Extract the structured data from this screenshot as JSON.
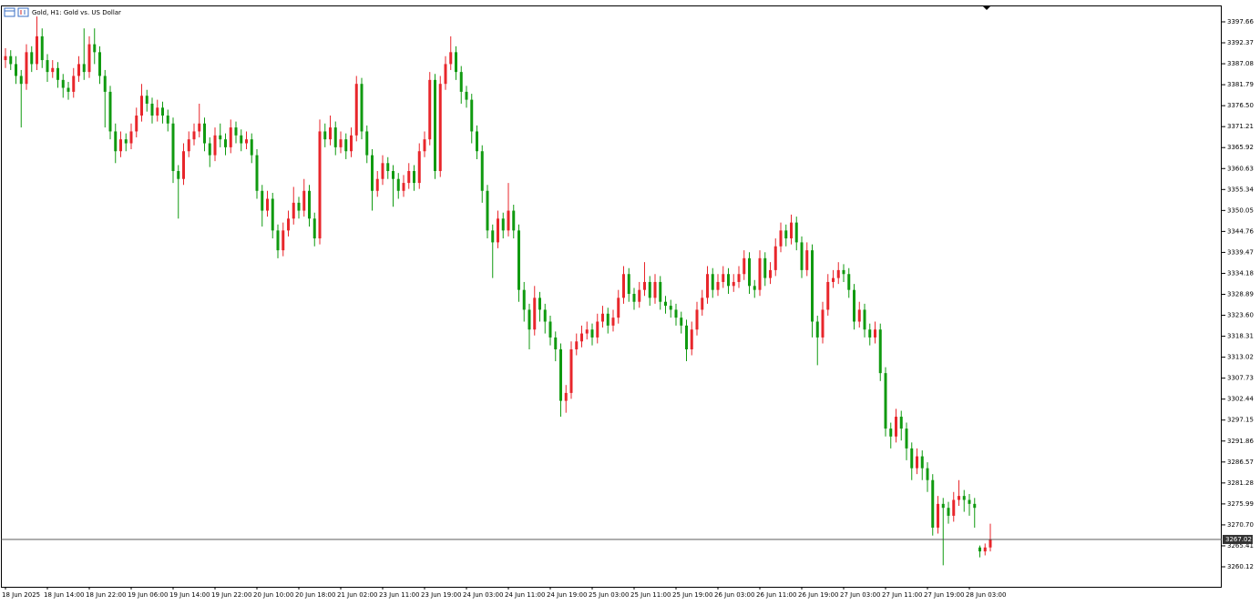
{
  "chart_data": {
    "type": "candlestick",
    "title": "Gold, H1:  Gold vs. US Dollar",
    "up_color": "#e8262b",
    "down_color": "#109a10",
    "ylim": [
      3255.07,
      3401.56
    ],
    "yticks": [
      3397.66,
      3392.37,
      3387.08,
      3381.79,
      {
        "value": 3376.5,
        "label": "3376.50"
      },
      3371.21,
      3365.92,
      3360.63,
      3355.34,
      3350.05,
      3344.76,
      3339.47,
      3334.18,
      3328.89,
      {
        "value": 3323.6,
        "label": "3323.60"
      },
      3318.31,
      3313.02,
      3307.73,
      3302.44,
      3297.15,
      3291.86,
      3286.57,
      3281.28,
      3275.99,
      {
        "value": 3270.7,
        "label": "3270.70"
      },
      3265.41,
      3260.12
    ],
    "current_price": 3267.02,
    "categories": [
      "18 Jun 2025",
      null,
      null,
      null,
      null,
      null,
      null,
      null,
      "18 Jun 14:00",
      null,
      null,
      null,
      null,
      null,
      null,
      null,
      "18 Jun 22:00",
      null,
      null,
      null,
      null,
      null,
      null,
      null,
      "19 Jun 06:00",
      null,
      null,
      null,
      null,
      null,
      null,
      null,
      "19 Jun 14:00",
      null,
      null,
      null,
      null,
      null,
      null,
      null,
      "19 Jun 22:00",
      null,
      null,
      null,
      null,
      null,
      null,
      null,
      "20 Jun 10:00",
      null,
      null,
      null,
      null,
      null,
      null,
      null,
      "20 Jun 18:00",
      null,
      null,
      null,
      null,
      null,
      null,
      null,
      "21 Jun 02:00",
      null,
      null,
      null,
      null,
      null,
      null,
      null,
      "23 Jun 11:00",
      null,
      null,
      null,
      null,
      null,
      null,
      null,
      "23 Jun 19:00",
      null,
      null,
      null,
      null,
      null,
      null,
      null,
      "24 Jun 03:00",
      null,
      null,
      null,
      null,
      null,
      null,
      null,
      "24 Jun 11:00",
      null,
      null,
      null,
      null,
      null,
      null,
      null,
      "24 Jun 19:00",
      null,
      null,
      null,
      null,
      null,
      null,
      null,
      "25 Jun 03:00",
      null,
      null,
      null,
      null,
      null,
      null,
      null,
      "25 Jun 11:00",
      null,
      null,
      null,
      null,
      null,
      null,
      null,
      "25 Jun 19:00",
      null,
      null,
      null,
      null,
      null,
      null,
      null,
      "26 Jun 03:00",
      null,
      null,
      null,
      null,
      null,
      null,
      null,
      "26 Jun 11:00",
      null,
      null,
      null,
      null,
      null,
      null,
      null,
      "26 Jun 19:00",
      null,
      null,
      null,
      null,
      null,
      null,
      null,
      "27 Jun 03:00",
      null,
      null,
      null,
      null,
      null,
      null,
      null,
      "27 Jun 11:00",
      null,
      null,
      null,
      null,
      null,
      null,
      null,
      "27 Jun 19:00",
      null,
      null,
      null,
      null,
      null,
      null,
      null,
      "28 Jun 03:00",
      null,
      null,
      null,
      null
    ],
    "ohlc": [
      [
        3388,
        3391,
        3386,
        3389
      ],
      [
        3389,
        3390.5,
        3385.5,
        3387
      ],
      [
        3387,
        3389,
        3382,
        3384
      ],
      [
        3384,
        3385.5,
        3371,
        3382
      ],
      [
        3382,
        3392,
        3380.5,
        3390
      ],
      [
        3390,
        3391.5,
        3385,
        3387
      ],
      [
        3387,
        3399,
        3385.5,
        3394
      ],
      [
        3394,
        3396,
        3386,
        3388
      ],
      [
        3388,
        3389.5,
        3382.5,
        3385
      ],
      [
        3385,
        3388,
        3383.5,
        3386
      ],
      [
        3386,
        3387.5,
        3381,
        3383
      ],
      [
        3383,
        3384.5,
        3378.5,
        3381
      ],
      [
        3381,
        3382.5,
        3378,
        3380
      ],
      [
        3380,
        3386,
        3378.5,
        3384
      ],
      [
        3384,
        3389,
        3382.5,
        3387
      ],
      [
        3387,
        3396,
        3383,
        3385
      ],
      [
        3385,
        3394,
        3383.5,
        3392
      ],
      [
        3392,
        3396,
        3387,
        3390
      ],
      [
        3390,
        3391.5,
        3382,
        3384
      ],
      [
        3384,
        3385.5,
        3371,
        3380
      ],
      [
        3380,
        3381.5,
        3368,
        3370
      ],
      [
        3370,
        3372,
        3362,
        3365
      ],
      [
        3365,
        3370,
        3363.5,
        3368
      ],
      [
        3368,
        3369.5,
        3365,
        3367
      ],
      [
        3367,
        3372,
        3365.5,
        3370
      ],
      [
        3370,
        3376,
        3368.5,
        3374
      ],
      [
        3374,
        3382,
        3372.5,
        3379
      ],
      [
        3379,
        3380.5,
        3375,
        3377
      ],
      [
        3377,
        3378.5,
        3372,
        3374
      ],
      [
        3374,
        3378,
        3372.5,
        3376
      ],
      [
        3376,
        3377.5,
        3372,
        3374
      ],
      [
        3374,
        3375.5,
        3370,
        3372
      ],
      [
        3372,
        3373.5,
        3357,
        3360
      ],
      [
        3360,
        3361.5,
        3348,
        3358
      ],
      [
        3358,
        3367,
        3356.5,
        3365
      ],
      [
        3365,
        3370,
        3363.5,
        3368
      ],
      [
        3368,
        3372,
        3366.5,
        3370
      ],
      [
        3370,
        3377,
        3368.5,
        3372
      ],
      [
        3372,
        3373.5,
        3365,
        3367
      ],
      [
        3367,
        3368.5,
        3361,
        3364
      ],
      [
        3364,
        3371,
        3362.5,
        3369
      ],
      [
        3369,
        3372,
        3366,
        3368
      ],
      [
        3368,
        3369.5,
        3364,
        3366
      ],
      [
        3366,
        3373,
        3364.5,
        3371
      ],
      [
        3371,
        3372.5,
        3367,
        3369
      ],
      [
        3369,
        3370.5,
        3365,
        3367
      ],
      [
        3367,
        3370,
        3365.5,
        3368
      ],
      [
        3368,
        3369.5,
        3362,
        3364
      ],
      [
        3364,
        3365.5,
        3353,
        3355
      ],
      [
        3355,
        3356.5,
        3346,
        3350
      ],
      [
        3350,
        3355,
        3348.5,
        3353
      ],
      [
        3353,
        3354.5,
        3343,
        3345
      ],
      [
        3345,
        3346.5,
        3338,
        3340
      ],
      [
        3340,
        3347,
        3338.5,
        3345
      ],
      [
        3345,
        3350,
        3343.5,
        3348
      ],
      [
        3348,
        3356,
        3346.5,
        3352
      ],
      [
        3352,
        3353.5,
        3348,
        3350
      ],
      [
        3350,
        3358,
        3348.5,
        3355
      ],
      [
        3355,
        3356.5,
        3346,
        3348
      ],
      [
        3348,
        3349.5,
        3341,
        3343
      ],
      [
        3343,
        3373,
        3341.5,
        3370
      ],
      [
        3370,
        3372,
        3366,
        3368
      ],
      [
        3368,
        3374,
        3366.5,
        3371
      ],
      [
        3371,
        3372.5,
        3364,
        3366
      ],
      [
        3366,
        3370,
        3364.5,
        3368
      ],
      [
        3368,
        3369.5,
        3363,
        3365
      ],
      [
        3365,
        3371,
        3363.5,
        3369
      ],
      [
        3369,
        3384,
        3367.5,
        3382
      ],
      [
        3382,
        3383.5,
        3368,
        3370
      ],
      [
        3370,
        3371.5,
        3362,
        3364
      ],
      [
        3364,
        3365.5,
        3350,
        3355
      ],
      [
        3355,
        3360,
        3353.5,
        3358
      ],
      [
        3358,
        3364,
        3356.5,
        3362
      ],
      [
        3362,
        3363.5,
        3358,
        3360
      ],
      [
        3360,
        3361.5,
        3351,
        3358
      ],
      [
        3358,
        3359.5,
        3353,
        3355
      ],
      [
        3355,
        3359,
        3353.5,
        3357
      ],
      [
        3357,
        3362,
        3355.5,
        3360
      ],
      [
        3360,
        3361.5,
        3355,
        3357
      ],
      [
        3357,
        3367,
        3355.5,
        3365
      ],
      [
        3365,
        3370,
        3363.5,
        3368
      ],
      [
        3368,
        3385,
        3366.5,
        3383
      ],
      [
        3383,
        3384.5,
        3358,
        3360
      ],
      [
        3360,
        3384,
        3358.5,
        3382
      ],
      [
        3382,
        3389,
        3380.5,
        3387
      ],
      [
        3387,
        3394,
        3385.5,
        3390
      ],
      [
        3390,
        3391.5,
        3383,
        3385
      ],
      [
        3385,
        3386.5,
        3377,
        3380
      ],
      [
        3380,
        3381.5,
        3376,
        3378
      ],
      [
        3378,
        3379.5,
        3367,
        3370
      ],
      [
        3370,
        3371.5,
        3363,
        3365
      ],
      [
        3365,
        3366.5,
        3352,
        3355
      ],
      [
        3355,
        3356.5,
        3343,
        3345
      ],
      [
        3345,
        3346.5,
        3333,
        3342
      ],
      [
        3342,
        3350,
        3340.5,
        3348
      ],
      [
        3348,
        3349.5,
        3343,
        3345
      ],
      [
        3345,
        3357,
        3343.5,
        3350
      ],
      [
        3350,
        3351.5,
        3343,
        3345
      ],
      [
        3345,
        3346.5,
        3327,
        3330
      ],
      [
        3330,
        3332,
        3322,
        3325
      ],
      [
        3325,
        3326.5,
        3315,
        3320
      ],
      [
        3320,
        3331,
        3318.5,
        3328
      ],
      [
        3328,
        3329.5,
        3322,
        3325
      ],
      [
        3325,
        3326.5,
        3319,
        3322
      ],
      [
        3322,
        3323.5,
        3316,
        3318
      ],
      [
        3318,
        3319.5,
        3312,
        3315
      ],
      [
        3315,
        3316.5,
        3298,
        3302
      ],
      [
        3302,
        3306,
        3299,
        3304
      ],
      [
        3304,
        3317,
        3302.5,
        3315
      ],
      [
        3315,
        3319,
        3313.5,
        3317
      ],
      [
        3317,
        3321,
        3315.5,
        3319
      ],
      [
        3319,
        3322,
        3317.5,
        3320
      ],
      [
        3320,
        3321.5,
        3316,
        3318
      ],
      [
        3318,
        3324,
        3316.5,
        3322
      ],
      [
        3322,
        3326,
        3320.5,
        3324
      ],
      [
        3324,
        3325.5,
        3319,
        3321
      ],
      [
        3321,
        3325,
        3319.5,
        3323
      ],
      [
        3323,
        3330,
        3321.5,
        3328
      ],
      [
        3328,
        3336,
        3326.5,
        3334
      ],
      [
        3334,
        3335.5,
        3327,
        3329
      ],
      [
        3329,
        3330.5,
        3325,
        3327
      ],
      [
        3327,
        3332,
        3325.5,
        3330
      ],
      [
        3330,
        3337,
        3328.5,
        3332
      ],
      [
        3332,
        3333.5,
        3326,
        3328
      ],
      [
        3328,
        3334,
        3326.5,
        3332
      ],
      [
        3332,
        3333.5,
        3325,
        3327
      ],
      [
        3327,
        3328.5,
        3324,
        3326
      ],
      [
        3326,
        3327.5,
        3323,
        3325
      ],
      [
        3325,
        3326.5,
        3321,
        3323
      ],
      [
        3323,
        3324.5,
        3319,
        3321
      ],
      [
        3321,
        3322.5,
        3312,
        3315
      ],
      [
        3315,
        3322,
        3313.5,
        3320
      ],
      [
        3320,
        3327,
        3318.5,
        3325
      ],
      [
        3325,
        3330,
        3323.5,
        3328
      ],
      [
        3328,
        3336,
        3326.5,
        3334
      ],
      [
        3334,
        3335.5,
        3328,
        3330
      ],
      [
        3330,
        3334,
        3328.5,
        3332
      ],
      [
        3332,
        3336,
        3330.5,
        3334
      ],
      [
        3334,
        3335.5,
        3329,
        3331
      ],
      [
        3331,
        3334,
        3329.5,
        3332
      ],
      [
        3332,
        3336,
        3330.5,
        3334
      ],
      [
        3334,
        3340,
        3332.5,
        3338
      ],
      [
        3338,
        3339.5,
        3329,
        3331
      ],
      [
        3331,
        3332.5,
        3328,
        3330
      ],
      [
        3330,
        3340,
        3328.5,
        3338
      ],
      [
        3338,
        3339.5,
        3331,
        3333
      ],
      [
        3333,
        3337,
        3331.5,
        3335
      ],
      [
        3335,
        3343,
        3333.5,
        3341
      ],
      [
        3341,
        3347,
        3339.5,
        3345
      ],
      [
        3345,
        3346.5,
        3341,
        3343
      ],
      [
        3343,
        3349,
        3341.5,
        3347
      ],
      [
        3347,
        3348.5,
        3340,
        3342
      ],
      [
        3342,
        3343.5,
        3333,
        3335
      ],
      [
        3335,
        3342,
        3333.5,
        3340
      ],
      [
        3340,
        3341.5,
        3318,
        3322
      ],
      [
        3322,
        3323.5,
        3311,
        3318
      ],
      [
        3318,
        3327,
        3316.5,
        3325
      ],
      [
        3325,
        3334,
        3323.5,
        3332
      ],
      [
        3332,
        3335,
        3330.5,
        3333
      ],
      [
        3333,
        3337,
        3331.5,
        3335
      ],
      [
        3335,
        3336.5,
        3332,
        3334
      ],
      [
        3334,
        3335.5,
        3328,
        3330
      ],
      [
        3330,
        3331.5,
        3320,
        3322
      ],
      [
        3322,
        3327,
        3320.5,
        3325
      ],
      [
        3325,
        3326.5,
        3318,
        3320
      ],
      [
        3320,
        3321.5,
        3316,
        3318
      ],
      [
        3318,
        3322,
        3316.5,
        3320
      ],
      [
        3320,
        3321.5,
        3307,
        3309
      ],
      [
        3309,
        3310.5,
        3293,
        3295
      ],
      [
        3295,
        3296.5,
        3290,
        3293
      ],
      [
        3293,
        3300,
        3291.5,
        3298
      ],
      [
        3298,
        3299.5,
        3292,
        3295
      ],
      [
        3295,
        3296.5,
        3287,
        3290
      ],
      [
        3290,
        3291.5,
        3282,
        3285
      ],
      [
        3285,
        3290,
        3283.5,
        3288
      ],
      [
        3288,
        3289.5,
        3282,
        3285
      ],
      [
        3285,
        3286.5,
        3279,
        3282
      ],
      [
        3282,
        3283.5,
        3268,
        3270
      ],
      [
        3270,
        3278,
        3268.5,
        3276
      ],
      [
        3276,
        3277.5,
        3260.5,
        3275
      ],
      [
        3275,
        3276.5,
        3271,
        3273
      ],
      [
        3273,
        3279,
        3271.5,
        3277
      ],
      [
        3277,
        3282,
        3275.5,
        3278
      ],
      [
        3278,
        3279.5,
        3274,
        3277
      ],
      [
        3277,
        3278.5,
        3273,
        3276
      ],
      [
        3276,
        3277.5,
        3270,
        3275
      ],
      [
        3265,
        3265.5,
        3262.5,
        3264
      ],
      [
        3264,
        3266,
        3263,
        3265
      ],
      [
        3265,
        3271,
        3264,
        3267.02
      ]
    ]
  }
}
